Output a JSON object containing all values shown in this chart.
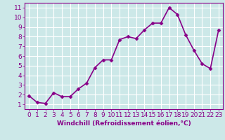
{
  "x": [
    0,
    1,
    2,
    3,
    4,
    5,
    6,
    7,
    8,
    9,
    10,
    11,
    12,
    13,
    14,
    15,
    16,
    17,
    18,
    19,
    20,
    21,
    22,
    23
  ],
  "y": [
    1.9,
    1.2,
    1.1,
    2.2,
    1.8,
    1.8,
    2.6,
    3.2,
    4.8,
    5.6,
    5.6,
    7.7,
    8.0,
    7.8,
    8.7,
    9.4,
    9.4,
    11.0,
    10.3,
    8.2,
    6.6,
    5.2,
    4.7,
    8.7
  ],
  "line_color": "#880088",
  "marker": "D",
  "marker_size": 2.5,
  "background_color": "#cce8e8",
  "grid_color": "#ffffff",
  "xlabel": "Windchill (Refroidissement éolien,°C)",
  "xlim": [
    -0.5,
    23.5
  ],
  "ylim": [
    0.5,
    11.5
  ],
  "xticks": [
    0,
    1,
    2,
    3,
    4,
    5,
    6,
    7,
    8,
    9,
    10,
    11,
    12,
    13,
    14,
    15,
    16,
    17,
    18,
    19,
    20,
    21,
    22,
    23
  ],
  "yticks": [
    1,
    2,
    3,
    4,
    5,
    6,
    7,
    8,
    9,
    10,
    11
  ],
  "tick_color": "#880088",
  "xlabel_fontsize": 6.5,
  "tick_fontsize": 6.5,
  "line_width": 1.2
}
